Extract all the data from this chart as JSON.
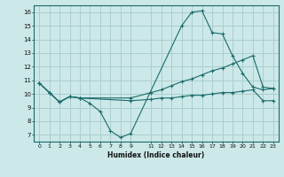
{
  "xlabel": "Humidex (Indice chaleur)",
  "bg_color": "#cce8e8",
  "line_color": "#1a6b6b",
  "grid_color": "#aacece",
  "xlim": [
    -0.5,
    23.5
  ],
  "ylim": [
    6.5,
    16.5
  ],
  "xticks": [
    0,
    1,
    2,
    3,
    4,
    5,
    6,
    7,
    8,
    9,
    11,
    12,
    13,
    14,
    15,
    16,
    17,
    18,
    19,
    20,
    21,
    22,
    23
  ],
  "yticks": [
    7,
    8,
    9,
    10,
    11,
    12,
    13,
    14,
    15,
    16
  ],
  "line1_x": [
    0,
    1,
    2,
    3,
    4,
    5,
    6,
    7,
    8,
    9,
    14,
    15,
    16,
    17,
    18,
    19,
    20,
    21,
    22,
    23
  ],
  "line1_y": [
    10.8,
    10.1,
    9.4,
    9.8,
    9.7,
    9.3,
    8.7,
    7.3,
    6.8,
    7.1,
    15.0,
    16.0,
    16.1,
    14.5,
    14.4,
    12.8,
    11.5,
    10.5,
    10.3,
    10.4
  ],
  "line2_x": [
    0,
    1,
    2,
    3,
    4,
    9,
    11,
    12,
    13,
    14,
    15,
    16,
    17,
    18,
    19,
    20,
    21,
    22,
    23
  ],
  "line2_y": [
    10.8,
    10.1,
    9.4,
    9.8,
    9.7,
    9.7,
    10.1,
    10.3,
    10.6,
    10.9,
    11.1,
    11.4,
    11.7,
    11.9,
    12.2,
    12.5,
    12.8,
    10.5,
    10.4
  ],
  "line3_x": [
    0,
    1,
    2,
    3,
    4,
    9,
    11,
    12,
    13,
    14,
    15,
    16,
    17,
    18,
    19,
    20,
    21,
    22,
    23
  ],
  "line3_y": [
    10.8,
    10.1,
    9.4,
    9.8,
    9.7,
    9.5,
    9.6,
    9.7,
    9.7,
    9.8,
    9.9,
    9.9,
    10.0,
    10.1,
    10.1,
    10.2,
    10.3,
    9.5,
    9.5
  ]
}
